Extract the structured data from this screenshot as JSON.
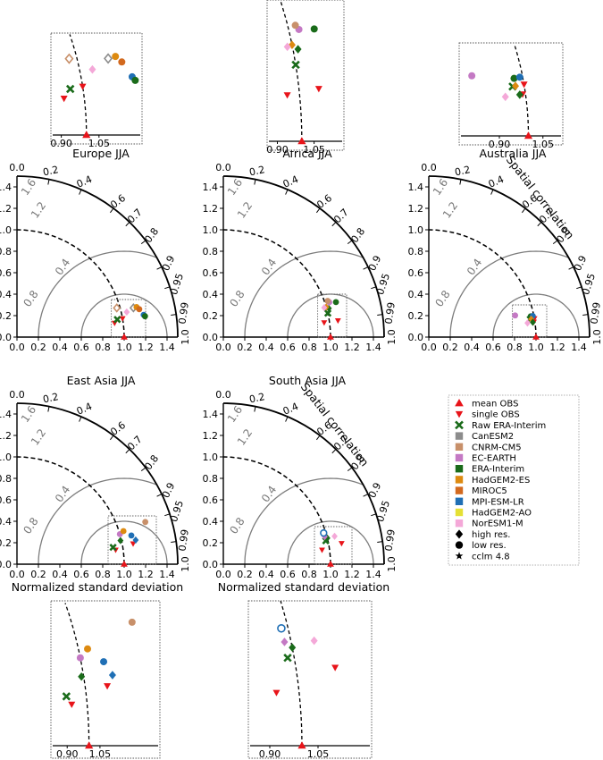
{
  "chart_data": {
    "type": "taylor_diagram",
    "xlabel": "Normalized standard deviation",
    "corr_label": "Spatial correlation",
    "std_ticks": [
      "0.0",
      "0.2",
      "0.4",
      "0.6",
      "0.8",
      "1.0",
      "1.2",
      "1.4"
    ],
    "corr_ticks": [
      "0.2",
      "0.4",
      "0.6",
      "0.7",
      "0.8",
      "0.9",
      "0.95",
      "0.99",
      "1.0"
    ],
    "crms_ticks": [
      "0.4",
      "0.8",
      "1.2",
      "1.6"
    ],
    "zoom_ticks": [
      "0.90",
      "1.05"
    ],
    "legend": [
      {
        "label": "mean OBS",
        "marker": "tri-up",
        "color": "#e8141a"
      },
      {
        "label": "single OBS",
        "marker": "tri-down",
        "color": "#e8141a"
      },
      {
        "label": "Raw ERA-Interim",
        "marker": "x",
        "color": "#1a6b1a"
      },
      {
        "label": "CanESM2",
        "marker": "square",
        "color": "#8c8c8c"
      },
      {
        "label": "CNRM-CM5",
        "marker": "square",
        "color": "#c8906a"
      },
      {
        "label": "EC-EARTH",
        "marker": "square",
        "color": "#c479c4"
      },
      {
        "label": "ERA-Interim",
        "marker": "square",
        "color": "#1a6b1a"
      },
      {
        "label": "HadGEM2-ES",
        "marker": "square",
        "color": "#dd8a10"
      },
      {
        "label": "MIROC5",
        "marker": "square",
        "color": "#d2691e"
      },
      {
        "label": "MPI-ESM-LR",
        "marker": "square",
        "color": "#1f6fb5"
      },
      {
        "label": "HadGEM2-AO",
        "marker": "square",
        "color": "#e5e035"
      },
      {
        "label": "NorESM1-M",
        "marker": "square",
        "color": "#f4a8d8"
      },
      {
        "label": "high res.",
        "marker": "diamond",
        "color": "#000000"
      },
      {
        "label": "low res.",
        "marker": "circle",
        "color": "#000000"
      },
      {
        "label": "cclm 4.8",
        "marker": "star",
        "color": "#000000"
      }
    ],
    "panels": [
      {
        "title": "Europe JJA",
        "points": [
          {
            "model": "mean OBS",
            "marker": "tri-up",
            "std": 1.0,
            "corr": 1.0
          },
          {
            "model": "single OBS",
            "marker": "tri-down",
            "std": 0.92,
            "corr": 0.99
          },
          {
            "model": "single OBS",
            "marker": "tri-down",
            "std": 1.0,
            "corr": 0.985
          },
          {
            "model": "Raw ERA-Interim",
            "marker": "x",
            "std": 0.95,
            "corr": 0.985
          },
          {
            "model": "CanESM2",
            "marker": "diamond-open",
            "std": 1.12,
            "corr": 0.97
          },
          {
            "model": "CNRM-CM5",
            "marker": "diamond-open",
            "std": 0.97,
            "corr": 0.96
          },
          {
            "model": "HadGEM2-ES",
            "marker": "circle",
            "std": 1.15,
            "corr": 0.97
          },
          {
            "model": "MIROC5",
            "marker": "circle",
            "std": 1.17,
            "corr": 0.975
          },
          {
            "model": "MPI-ESM-LR",
            "marker": "circle",
            "std": 1.2,
            "corr": 0.985
          },
          {
            "model": "ERA-Interim",
            "marker": "circle",
            "std": 1.21,
            "corr": 0.987
          },
          {
            "model": "NorESM1-M",
            "marker": "diamond",
            "std": 1.05,
            "corr": 0.975
          }
        ]
      },
      {
        "title": "Africa JJA",
        "points": [
          {
            "model": "mean OBS",
            "marker": "tri-up",
            "std": 1.0,
            "corr": 1.0
          },
          {
            "model": "single OBS",
            "marker": "tri-down",
            "std": 0.95,
            "corr": 0.99
          },
          {
            "model": "single OBS",
            "marker": "tri-down",
            "std": 1.08,
            "corr": 0.99
          },
          {
            "model": "Raw ERA-Interim",
            "marker": "x",
            "std": 1.0,
            "corr": 0.975
          },
          {
            "model": "ERA-Interim",
            "marker": "diamond",
            "std": 1.02,
            "corr": 0.965
          },
          {
            "model": "HadGEM2-ES",
            "marker": "diamond",
            "std": 1.0,
            "corr": 0.96
          },
          {
            "model": "EC-EARTH",
            "marker": "circle",
            "std": 1.04,
            "corr": 0.95
          },
          {
            "model": "CNRM-CM5",
            "marker": "circle",
            "std": 1.03,
            "corr": 0.945
          },
          {
            "model": "ERA-Interim",
            "marker": "circle",
            "std": 1.1,
            "corr": 0.955
          },
          {
            "model": "NorESM1-M",
            "marker": "diamond",
            "std": 0.98,
            "corr": 0.96
          }
        ]
      },
      {
        "title": "Australia JJA",
        "points": [
          {
            "model": "mean OBS",
            "marker": "tri-up",
            "std": 1.0,
            "corr": 1.0
          },
          {
            "model": "single OBS",
            "marker": "tri-down",
            "std": 0.99,
            "corr": 0.99
          },
          {
            "model": "single OBS",
            "marker": "tri-down",
            "std": 1.0,
            "corr": 0.985
          },
          {
            "model": "Raw ERA-Interim",
            "marker": "x",
            "std": 0.96,
            "corr": 0.985
          },
          {
            "model": "ERA-Interim",
            "marker": "circle",
            "std": 0.97,
            "corr": 0.98
          },
          {
            "model": "MPI-ESM-LR",
            "marker": "circle",
            "std": 0.99,
            "corr": 0.98
          },
          {
            "model": "HadGEM2-ES",
            "marker": "diamond",
            "std": 0.97,
            "corr": 0.985
          },
          {
            "model": "ERA-Interim",
            "marker": "diamond",
            "std": 0.98,
            "corr": 0.99
          },
          {
            "model": "NorESM1-M",
            "marker": "diamond",
            "std": 0.93,
            "corr": 0.99
          },
          {
            "model": "EC-EARTH",
            "marker": "circle",
            "std": 0.83,
            "corr": 0.97
          }
        ]
      },
      {
        "title": "East Asia JJA",
        "points": [
          {
            "model": "mean OBS",
            "marker": "tri-up",
            "std": 1.0,
            "corr": 1.0
          },
          {
            "model": "single OBS",
            "marker": "tri-down",
            "std": 0.93,
            "corr": 0.99
          },
          {
            "model": "single OBS",
            "marker": "tri-down",
            "std": 1.1,
            "corr": 0.985
          },
          {
            "model": "Raw ERA-Interim",
            "marker": "x",
            "std": 0.91,
            "corr": 0.985
          },
          {
            "model": "ERA-Interim",
            "marker": "diamond",
            "std": 0.99,
            "corr": 0.975
          },
          {
            "model": "EC-EARTH",
            "marker": "circle",
            "std": 1.0,
            "corr": 0.96
          },
          {
            "model": "HadGEM2-ES",
            "marker": "circle",
            "std": 1.04,
            "corr": 0.955
          },
          {
            "model": "MPI-ESM-LR",
            "marker": "circle",
            "std": 1.1,
            "corr": 0.97
          },
          {
            "model": "MPI-ESM-LR",
            "marker": "diamond",
            "std": 1.13,
            "corr": 0.98
          },
          {
            "model": "CNRM-CM5",
            "marker": "circle",
            "std": 1.26,
            "corr": 0.95
          }
        ]
      },
      {
        "title": "South Asia JJA",
        "points": [
          {
            "model": "mean OBS",
            "marker": "tri-up",
            "std": 1.0,
            "corr": 1.0
          },
          {
            "model": "single OBS",
            "marker": "tri-down",
            "std": 0.93,
            "corr": 0.99
          },
          {
            "model": "single OBS",
            "marker": "tri-down",
            "std": 1.12,
            "corr": 0.985
          },
          {
            "model": "Raw ERA-Interim",
            "marker": "x",
            "std": 0.98,
            "corr": 0.975
          },
          {
            "model": "ERA-Interim",
            "marker": "diamond",
            "std": 1.0,
            "corr": 0.97
          },
          {
            "model": "EC-EARTH",
            "marker": "diamond",
            "std": 0.98,
            "corr": 0.965
          },
          {
            "model": "MPI-ESM-LR",
            "marker": "circle-open",
            "std": 0.98,
            "corr": 0.955
          },
          {
            "model": "NorESM1-M",
            "marker": "diamond",
            "std": 1.07,
            "corr": 0.97
          }
        ]
      }
    ]
  }
}
